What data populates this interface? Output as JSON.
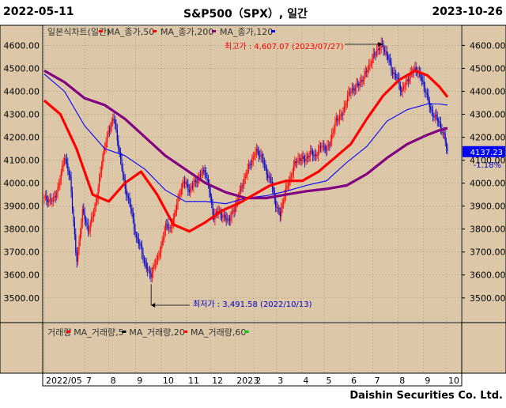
{
  "header": {
    "start_date": "2022-05-11",
    "title": "S&P500（SPX）, 일간",
    "end_date": "2023-10-26"
  },
  "footer": {
    "company": "Daishin Securities Co. Ltd."
  },
  "price_panel": {
    "legend": [
      {
        "label": "일본식차트(일간)",
        "color": "#ff0000"
      },
      {
        "label": "MA_종가,50",
        "color": "#ff0000"
      },
      {
        "label": "MA_종가,200",
        "color": "#800080"
      },
      {
        "label": "MA_종가,120",
        "color": "#0000ff"
      }
    ],
    "high_annotation": "최고가 : 4,607.07 (2023/07/27)",
    "low_annotation": "최저가 : 3,491.58 (2022/10/13)",
    "last_price": "4137.23",
    "last_change": "-1.18%"
  },
  "volume_panel": {
    "legend": [
      {
        "label": "거래량",
        "color": "#ff0000"
      },
      {
        "label": "MA_거래량,5",
        "color": "#000000"
      },
      {
        "label": "MA_거래량,20",
        "color": "#ff0000"
      },
      {
        "label": "MA_거래량,60",
        "color": "#00cc00"
      }
    ]
  },
  "colors": {
    "panel_bg": "#dcc8a8",
    "axis_bg": "#dcc8a8",
    "up": "#ff0000",
    "down": "#0000cc",
    "ma50": "#ff0000",
    "ma200": "#800080",
    "ma120": "#0000ff"
  },
  "chart_data": {
    "type": "line",
    "title": "S&P500（SPX）, 일간",
    "ylim": [
      3420,
      4660
    ],
    "yticks": [
      3500,
      3600,
      3700,
      3800,
      3900,
      4000,
      4100,
      4200,
      4300,
      4400,
      4500,
      4600
    ],
    "x_labels": [
      {
        "label": "2022/05",
        "t": 0.0
      },
      {
        "label": "7",
        "t": 0.1
      },
      {
        "label": "8",
        "t": 0.16
      },
      {
        "label": "9",
        "t": 0.226
      },
      {
        "label": "10",
        "t": 0.29
      },
      {
        "label": "11",
        "t": 0.353
      },
      {
        "label": "12",
        "t": 0.412
      },
      {
        "label": "2023",
        "t": 0.473
      },
      {
        "label": "2",
        "t": 0.52
      },
      {
        "label": "3",
        "t": 0.575
      },
      {
        "label": "4",
        "t": 0.638
      },
      {
        "label": "5",
        "t": 0.695
      },
      {
        "label": "6",
        "t": 0.757
      },
      {
        "label": "7",
        "t": 0.815
      },
      {
        "label": "8",
        "t": 0.877
      },
      {
        "label": "9",
        "t": 0.94
      },
      {
        "label": "10",
        "t": 0.998
      }
    ],
    "close": [
      [
        0.0,
        3935
      ],
      [
        0.02,
        3920
      ],
      [
        0.035,
        3980
      ],
      [
        0.05,
        4120
      ],
      [
        0.065,
        4010
      ],
      [
        0.08,
        3650
      ],
      [
        0.095,
        3880
      ],
      [
        0.11,
        3790
      ],
      [
        0.12,
        3860
      ],
      [
        0.13,
        3930
      ],
      [
        0.145,
        4120
      ],
      [
        0.16,
        4230
      ],
      [
        0.172,
        4290
      ],
      [
        0.185,
        4150
      ],
      [
        0.2,
        3980
      ],
      [
        0.215,
        3890
      ],
      [
        0.228,
        3760
      ],
      [
        0.24,
        3720
      ],
      [
        0.25,
        3640
      ],
      [
        0.265,
        3600
      ],
      [
        0.275,
        3650
      ],
      [
        0.29,
        3720
      ],
      [
        0.302,
        3830
      ],
      [
        0.312,
        3790
      ],
      [
        0.322,
        3860
      ],
      [
        0.335,
        3950
      ],
      [
        0.345,
        4010
      ],
      [
        0.36,
        3970
      ],
      [
        0.372,
        4000
      ],
      [
        0.385,
        4030
      ],
      [
        0.398,
        4060
      ],
      [
        0.41,
        3960
      ],
      [
        0.42,
        3850
      ],
      [
        0.432,
        3880
      ],
      [
        0.445,
        3850
      ],
      [
        0.458,
        3840
      ],
      [
        0.47,
        3880
      ],
      [
        0.485,
        3960
      ],
      [
        0.5,
        4040
      ],
      [
        0.512,
        4090
      ],
      [
        0.525,
        4140
      ],
      [
        0.538,
        4120
      ],
      [
        0.55,
        4050
      ],
      [
        0.562,
        4010
      ],
      [
        0.575,
        3900
      ],
      [
        0.585,
        3860
      ],
      [
        0.595,
        3950
      ],
      [
        0.608,
        4010
      ],
      [
        0.62,
        4080
      ],
      [
        0.632,
        4110
      ],
      [
        0.645,
        4100
      ],
      [
        0.66,
        4130
      ],
      [
        0.675,
        4120
      ],
      [
        0.688,
        4170
      ],
      [
        0.7,
        4140
      ],
      [
        0.712,
        4200
      ],
      [
        0.725,
        4280
      ],
      [
        0.74,
        4300
      ],
      [
        0.752,
        4380
      ],
      [
        0.765,
        4410
      ],
      [
        0.78,
        4430
      ],
      [
        0.795,
        4470
      ],
      [
        0.81,
        4530
      ],
      [
        0.825,
        4580
      ],
      [
        0.838,
        4600
      ],
      [
        0.85,
        4560
      ],
      [
        0.862,
        4490
      ],
      [
        0.874,
        4460
      ],
      [
        0.886,
        4400
      ],
      [
        0.898,
        4440
      ],
      [
        0.91,
        4480
      ],
      [
        0.922,
        4500
      ],
      [
        0.934,
        4460
      ],
      [
        0.946,
        4400
      ],
      [
        0.958,
        4320
      ],
      [
        0.968,
        4290
      ],
      [
        0.978,
        4270
      ],
      [
        0.988,
        4220
      ],
      [
        0.995,
        4180
      ],
      [
        1.0,
        4137
      ]
    ],
    "ma50": [
      [
        0.0,
        4360
      ],
      [
        0.04,
        4300
      ],
      [
        0.08,
        4150
      ],
      [
        0.12,
        3950
      ],
      [
        0.16,
        3920
      ],
      [
        0.2,
        4000
      ],
      [
        0.24,
        4050
      ],
      [
        0.28,
        3950
      ],
      [
        0.32,
        3820
      ],
      [
        0.36,
        3790
      ],
      [
        0.4,
        3830
      ],
      [
        0.44,
        3880
      ],
      [
        0.48,
        3910
      ],
      [
        0.52,
        3950
      ],
      [
        0.56,
        3990
      ],
      [
        0.6,
        4010
      ],
      [
        0.64,
        4010
      ],
      [
        0.68,
        4050
      ],
      [
        0.72,
        4110
      ],
      [
        0.76,
        4170
      ],
      [
        0.8,
        4280
      ],
      [
        0.84,
        4380
      ],
      [
        0.88,
        4450
      ],
      [
        0.92,
        4490
      ],
      [
        0.95,
        4470
      ],
      [
        0.98,
        4420
      ],
      [
        1.0,
        4375
      ]
    ],
    "ma120": [
      [
        0.0,
        4475
      ],
      [
        0.05,
        4400
      ],
      [
        0.1,
        4250
      ],
      [
        0.15,
        4150
      ],
      [
        0.2,
        4120
      ],
      [
        0.25,
        4060
      ],
      [
        0.3,
        3970
      ],
      [
        0.35,
        3920
      ],
      [
        0.4,
        3920
      ],
      [
        0.45,
        3910
      ],
      [
        0.5,
        3935
      ],
      [
        0.55,
        3945
      ],
      [
        0.6,
        3965
      ],
      [
        0.65,
        3990
      ],
      [
        0.7,
        4010
      ],
      [
        0.75,
        4090
      ],
      [
        0.8,
        4160
      ],
      [
        0.85,
        4270
      ],
      [
        0.9,
        4320
      ],
      [
        0.95,
        4345
      ],
      [
        0.98,
        4345
      ],
      [
        1.0,
        4340
      ]
    ],
    "ma200": [
      [
        0.0,
        4490
      ],
      [
        0.05,
        4440
      ],
      [
        0.1,
        4370
      ],
      [
        0.15,
        4340
      ],
      [
        0.2,
        4280
      ],
      [
        0.25,
        4200
      ],
      [
        0.3,
        4120
      ],
      [
        0.35,
        4060
      ],
      [
        0.4,
        4000
      ],
      [
        0.45,
        3960
      ],
      [
        0.5,
        3935
      ],
      [
        0.55,
        3935
      ],
      [
        0.6,
        3950
      ],
      [
        0.65,
        3965
      ],
      [
        0.7,
        3975
      ],
      [
        0.75,
        3990
      ],
      [
        0.8,
        4040
      ],
      [
        0.85,
        4110
      ],
      [
        0.9,
        4170
      ],
      [
        0.95,
        4210
      ],
      [
        0.98,
        4230
      ],
      [
        1.0,
        4240
      ]
    ]
  }
}
